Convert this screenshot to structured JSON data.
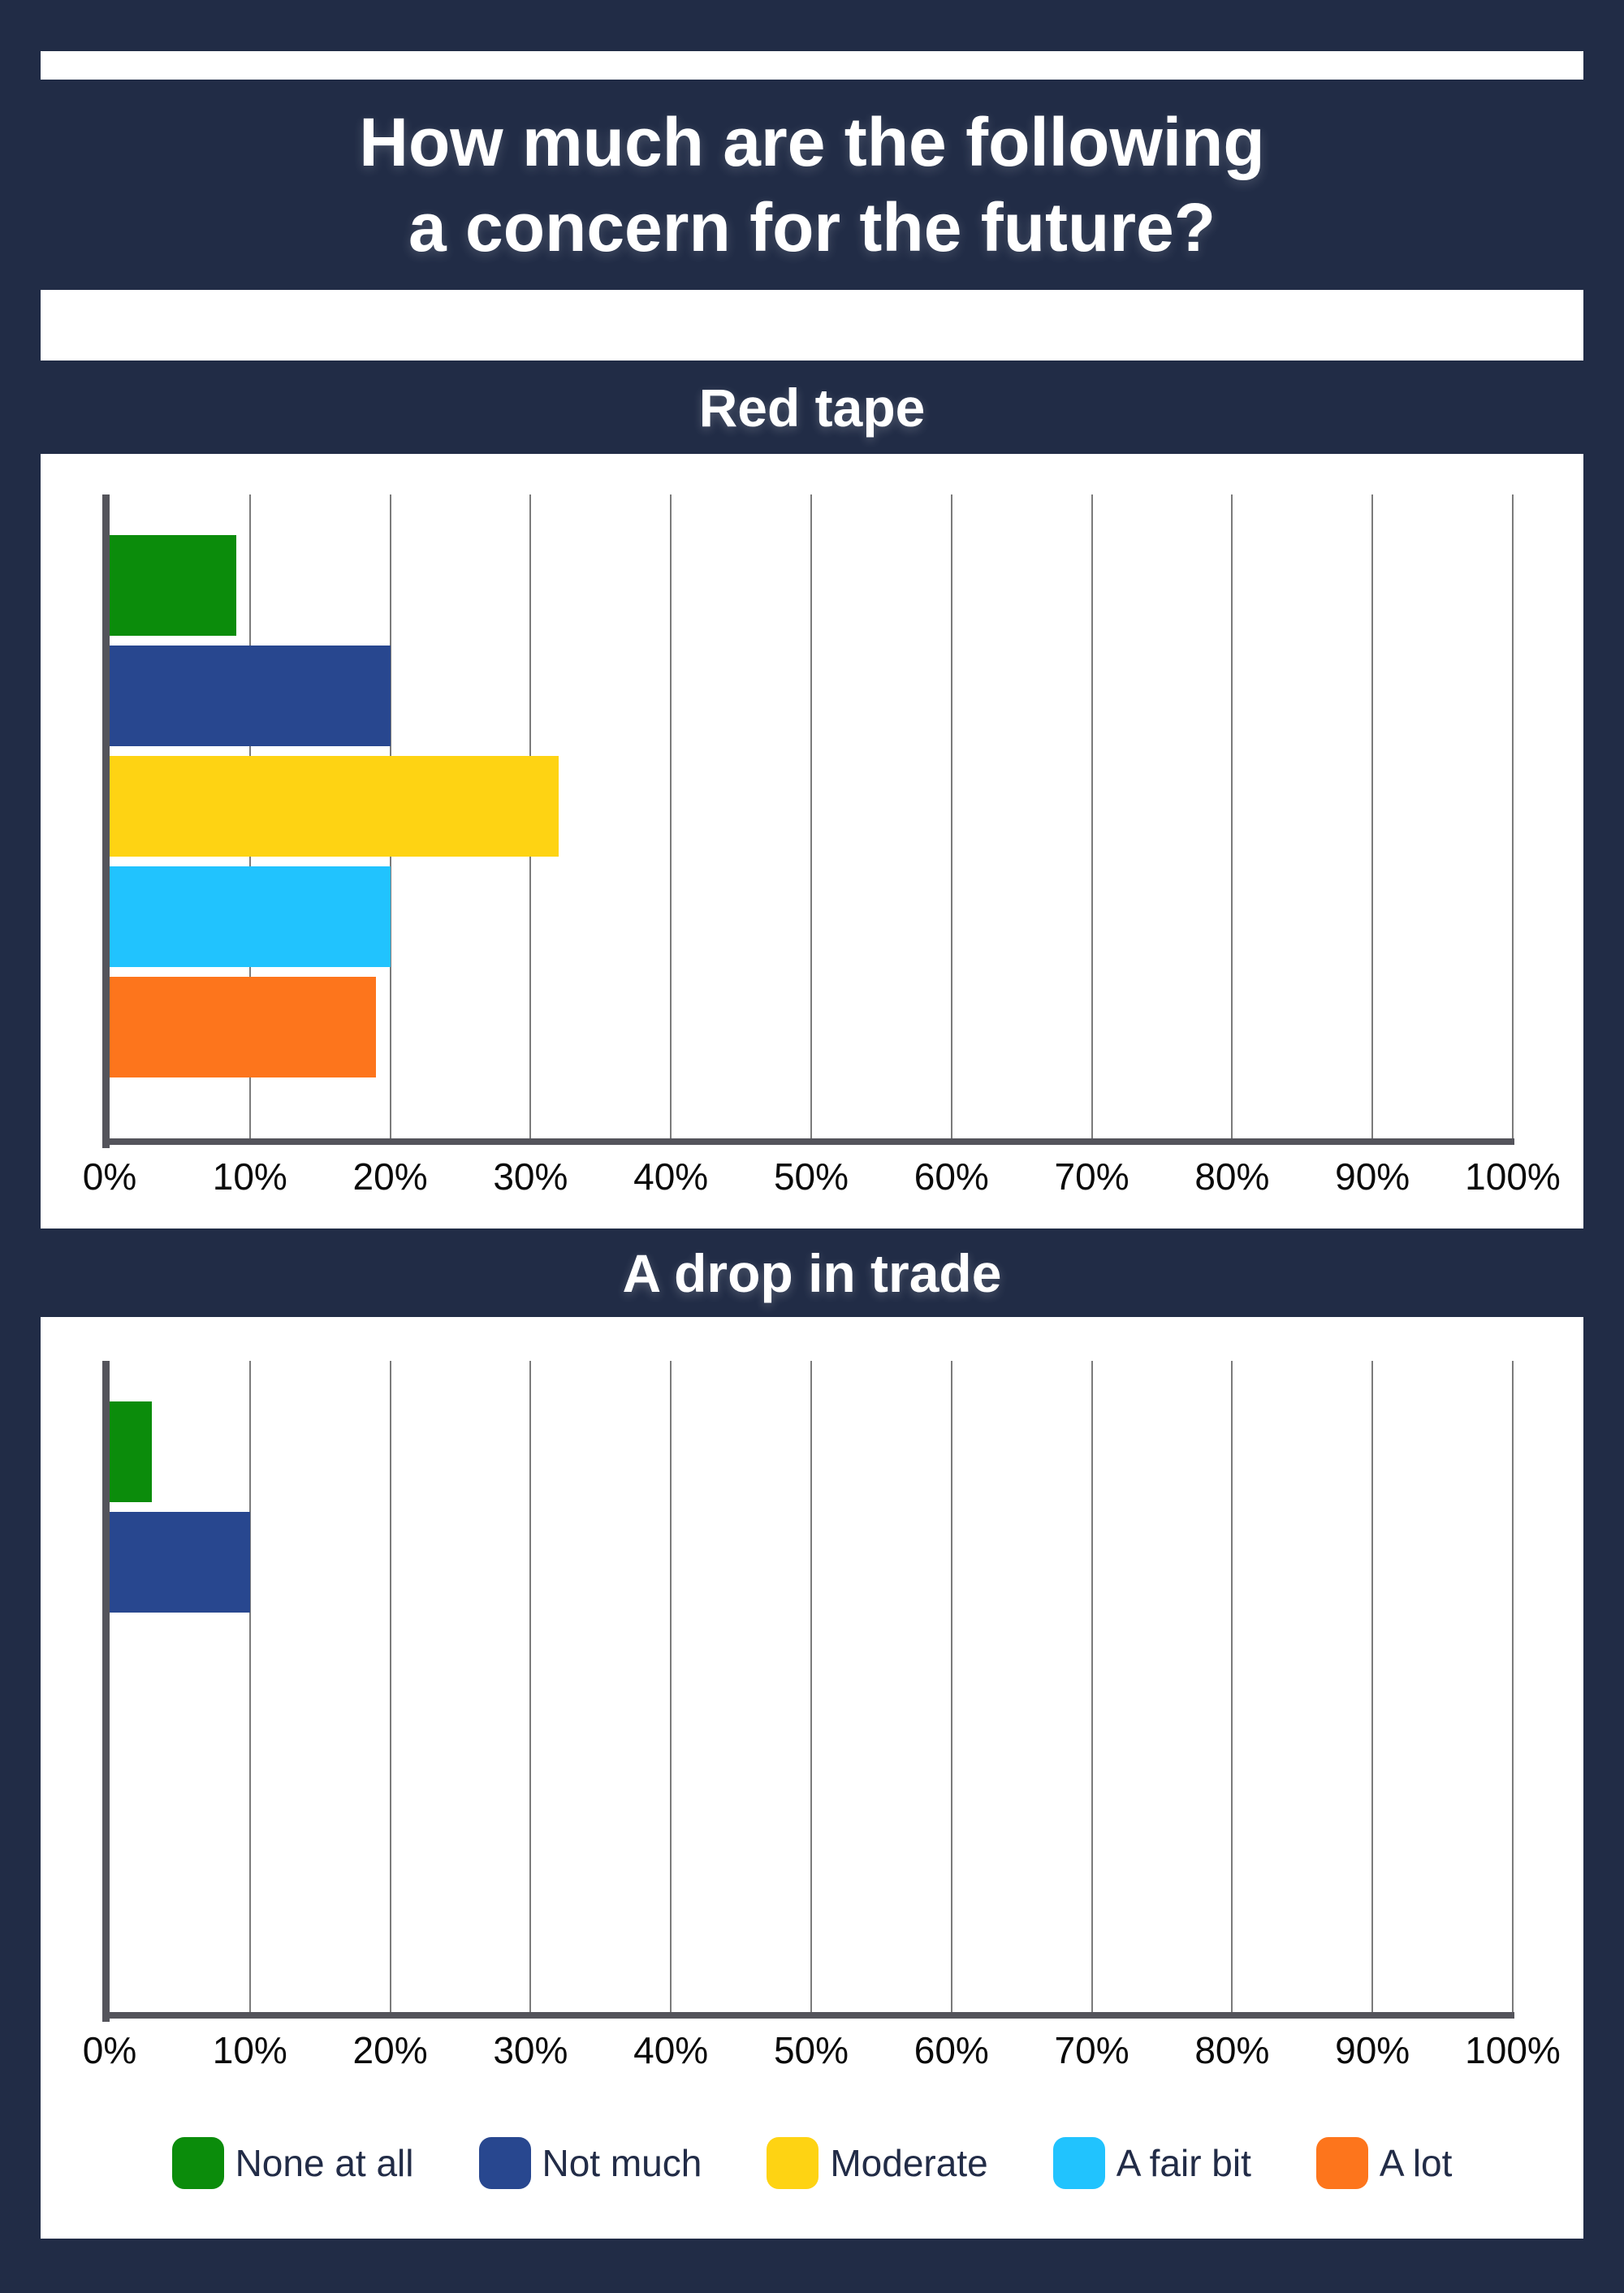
{
  "page": {
    "title": {
      "line1": "How much are the following",
      "line2": "a concern for the future?"
    },
    "colors": {
      "background": "#212C46",
      "panel": "#FFFFFF",
      "heading_text": "#FFFFFF",
      "axis_line": "#54545B",
      "gridline": "#7B7B7B",
      "tick_text": "#0A0A0A",
      "legend_text": "#222C47"
    }
  },
  "legend": {
    "items": [
      {
        "label": "None at all",
        "color": "#0B8C0B"
      },
      {
        "label": "Not much",
        "color": "#28478F"
      },
      {
        "label": "Moderate",
        "color": "#FED313"
      },
      {
        "label": "A fair bit",
        "color": "#21C3FE"
      },
      {
        "label": "A lot",
        "color": "#FD751C"
      }
    ]
  },
  "chart_data": [
    {
      "type": "bar",
      "orientation": "horizontal",
      "title": "Red tape",
      "categories": [
        "None at all",
        "Not much",
        "Moderate",
        "A fair bit",
        "A lot"
      ],
      "values": [
        9,
        20,
        32,
        20,
        19
      ],
      "value_unit": "%",
      "xlim": [
        0,
        100
      ],
      "x_ticks": [
        "0%",
        "10%",
        "20%",
        "30%",
        "40%",
        "50%",
        "60%",
        "70%",
        "80%",
        "90%",
        "100%"
      ],
      "grid": true,
      "legend_position": "shared-bottom"
    },
    {
      "type": "bar",
      "orientation": "horizontal",
      "title": "A drop in trade",
      "categories": [
        "None at all",
        "Not much",
        "Moderate",
        "A fair bit",
        "A lot"
      ],
      "values": [
        3,
        10,
        0,
        0,
        0
      ],
      "value_unit": "%",
      "xlim": [
        0,
        100
      ],
      "x_ticks": [
        "0%",
        "10%",
        "20%",
        "30%",
        "40%",
        "50%",
        "60%",
        "70%",
        "80%",
        "90%",
        "100%"
      ],
      "grid": true,
      "legend_position": "shared-bottom"
    }
  ]
}
